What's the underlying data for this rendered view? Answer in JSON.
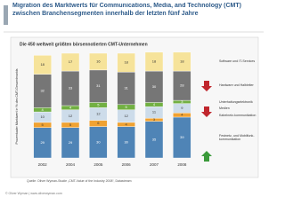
{
  "chart_data": {
    "type": "stacked_bar",
    "title": "Migration des Marktwerts für Communications, Media, and Technology (CMT) zwischen Branchensegmenten innerhalb der letzten fünf Jahre",
    "subtitle": "Die 450 weltweit größten börsennotierten CMT-Unternehmen",
    "y_label": "Prozentualer Marktwert in % des CMT-Gesamtmarkts",
    "source": "Quelle: Oliver Wyman-Studie „CMT-Value of the Industry 2008“, Datastream",
    "footer": "© Oliver Wyman | www.oliverwyman.com",
    "categories": [
      "2002",
      "2004",
      "2005",
      "2006",
      "2007",
      "2008"
    ],
    "ylim": [
      0,
      100
    ],
    "series": [
      {
        "name": "Festnetz- und Mobilfunk-kommunikation",
        "color": "#4f84b6",
        "values": [
          29,
          29,
          30,
          30,
          35,
          39
        ]
      },
      {
        "name": "Kabelnetz-kommunikation",
        "color": "#f0a232",
        "values": [
          5,
          5,
          6,
          4,
          3,
          4
        ]
      },
      {
        "name": "Medien",
        "color": "#cddcea",
        "values": [
          10,
          12,
          12,
          12,
          11,
          9
        ]
      },
      {
        "name": "Unterhaltungselektronik",
        "color": "#72b043",
        "values": [
          4,
          4,
          5,
          5,
          4,
          3
        ]
      },
      {
        "name": "Hardware und Halbleiter",
        "color": "#767676",
        "values": [
          32,
          33,
          31,
          31,
          30,
          28
        ]
      },
      {
        "name": "Software und IT-Services",
        "color": "#f6e39a",
        "values": [
          18,
          17,
          16,
          18,
          18,
          18
        ]
      }
    ]
  }
}
